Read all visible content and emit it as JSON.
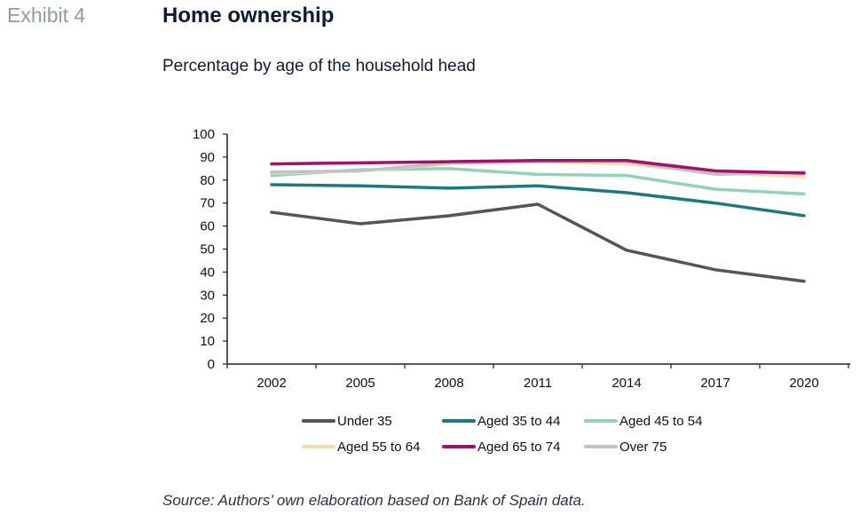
{
  "header": {
    "exhibit": "Exhibit 4",
    "title": "Home ownership",
    "subtitle": "Percentage by age of the household head"
  },
  "footer": {
    "source": "Source: Authors’ own elaboration based on Bank of Spain data."
  },
  "chart_data": {
    "type": "line",
    "title": "Home ownership",
    "subtitle": "Percentage by age of the household head",
    "xlabel": "",
    "ylabel": "",
    "categories": [
      "2002",
      "2005",
      "2008",
      "2011",
      "2014",
      "2017",
      "2020"
    ],
    "ylim": [
      0,
      100
    ],
    "yticks": [
      0,
      10,
      20,
      30,
      40,
      50,
      60,
      70,
      80,
      90,
      100
    ],
    "grid": false,
    "legend_position": "bottom",
    "series": [
      {
        "name": "Under 35",
        "color": "#555555",
        "values": [
          66,
          61,
          64.5,
          69.5,
          49.5,
          41,
          36
        ]
      },
      {
        "name": "Aged 35 to 44",
        "color": "#1b7a80",
        "values": [
          78,
          77.5,
          76.5,
          77.5,
          74.5,
          70,
          64.5
        ]
      },
      {
        "name": "Aged 45 to 54",
        "color": "#93d3b5",
        "values": [
          82,
          84.5,
          85,
          82.5,
          82,
          76,
          74
        ]
      },
      {
        "name": "Aged 55 to 64",
        "color": "#f3ddb0",
        "values": [
          83,
          84,
          87,
          88,
          87,
          83,
          81.5
        ]
      },
      {
        "name": "Aged 65 to 74",
        "color": "#a0126b",
        "values": [
          87,
          87.5,
          88,
          88.5,
          88.5,
          84,
          83
        ]
      },
      {
        "name": "Over 75",
        "color": "#c2c2c2",
        "values": [
          83.5,
          84,
          87.5,
          88,
          88,
          82.5,
          83.5
        ]
      }
    ]
  }
}
